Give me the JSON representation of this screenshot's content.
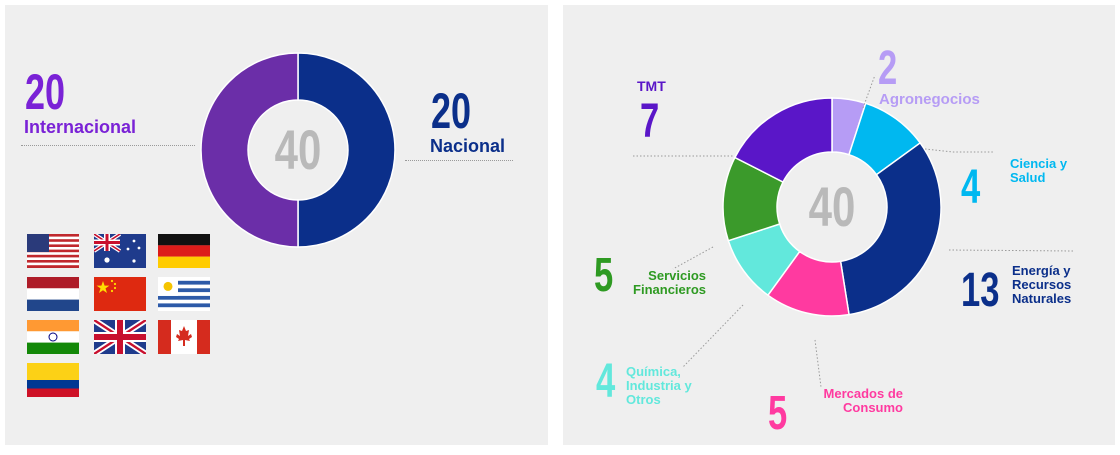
{
  "left": {
    "chart_data": {
      "type": "pie",
      "center_label": "40",
      "labels": [
        "Nacional",
        "Internacional"
      ],
      "values": [
        20,
        20
      ],
      "colors": [
        "#0b2f8a",
        "#6b2ea8"
      ]
    },
    "internacional": {
      "value": "20",
      "label": "Internacional",
      "color": "#7a22d6"
    },
    "nacional": {
      "value": "20",
      "label": "Nacional",
      "color": "#0b2f8a"
    },
    "flags": [
      "usa-flag",
      "australia-flag",
      "germany-flag",
      "netherlands-flag",
      "china-flag",
      "uruguay-flag",
      "india-flag",
      "uk-flag",
      "canada-flag",
      "colombia-flag"
    ]
  },
  "right": {
    "chart_data": {
      "type": "pie",
      "center_label": "40",
      "labels": [
        "Agronegocios",
        "Ciencia y Salud",
        "Energía y Recursos Naturales",
        "Mercados de Consumo",
        "Química, Industria y Otros",
        "Servicios Financieros",
        "TMT"
      ],
      "values": [
        2,
        4,
        13,
        5,
        4,
        5,
        7
      ],
      "colors": [
        "#b69cf5",
        "#00b8f0",
        "#0b2f8a",
        "#ff3aa0",
        "#62e8dc",
        "#3b9a2b",
        "#5a16c8"
      ]
    },
    "segments": {
      "tmt": {
        "value": "7",
        "label": "TMT"
      },
      "agro": {
        "value": "2",
        "label": "Agronegocios"
      },
      "ciencia": {
        "value": "4",
        "label_lines": [
          "Ciencia y",
          "Salud"
        ]
      },
      "energia": {
        "value": "13",
        "label_lines": [
          "Energía y",
          "Recursos",
          "Naturales"
        ]
      },
      "servicios": {
        "value": "5",
        "label_lines": [
          "Servicios",
          "Financieros"
        ]
      },
      "quimica": {
        "value": "4",
        "label_lines": [
          "Química,",
          "Industria y",
          "Otros"
        ]
      },
      "mercados": {
        "value": "5",
        "label_lines": [
          "Mercados de",
          "Consumo"
        ]
      }
    }
  }
}
